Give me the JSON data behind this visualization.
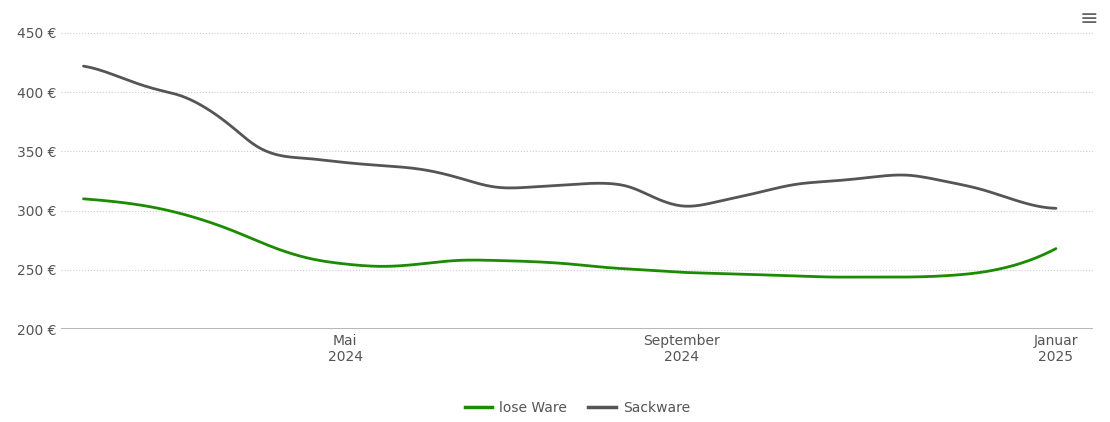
{
  "ylim": [
    200,
    460
  ],
  "yticks": [
    200,
    250,
    300,
    350,
    400,
    450
  ],
  "ytick_labels": [
    "200 €",
    "250 €",
    "300 €",
    "350 €",
    "400 €",
    "450 €"
  ],
  "background_color": "#ffffff",
  "grid_color": "#cccccc",
  "line_color_lose": "#1a8c00",
  "line_color_sack": "#555555",
  "legend_labels": [
    "lose Ware",
    "Sackware"
  ],
  "x_tick_labels": [
    "Mai\n2024",
    "September\n2024",
    "Januar\n2025"
  ],
  "lose_ware_x": [
    0,
    0.5,
    1,
    1.5,
    2,
    2.5,
    3,
    3.5,
    4,
    4.5,
    5,
    5.5,
    6,
    6.5,
    7,
    7.5,
    8,
    8.5,
    9,
    9.5,
    10,
    10.5,
    11,
    11.5,
    12,
    12.5,
    13
  ],
  "lose_ware_y": [
    310,
    307,
    302,
    294,
    283,
    270,
    260,
    255,
    253,
    255,
    258,
    258,
    257,
    255,
    252,
    250,
    248,
    247,
    246,
    245,
    244,
    244,
    244,
    245,
    248,
    255,
    268
  ],
  "sackware_x": [
    0,
    0.3,
    0.6,
    1.0,
    1.3,
    1.6,
    2.0,
    2.3,
    2.6,
    3.0,
    3.3,
    3.6,
    4.0,
    4.5,
    5.0,
    5.5,
    6.0,
    6.5,
    7.0,
    7.3,
    7.6,
    8.0,
    8.5,
    9.0,
    9.5,
    10.0,
    10.5,
    11.0,
    11.5,
    12.0,
    12.5,
    13.0
  ],
  "sackware_y": [
    422,
    417,
    410,
    402,
    397,
    388,
    370,
    355,
    347,
    344,
    342,
    340,
    338,
    335,
    328,
    320,
    320,
    322,
    323,
    320,
    312,
    304,
    308,
    315,
    322,
    325,
    328,
    330,
    325,
    318,
    308,
    302
  ],
  "xlim": [
    -0.3,
    13.5
  ],
  "x_tick_pos": [
    3.5,
    8.0,
    13.0
  ]
}
